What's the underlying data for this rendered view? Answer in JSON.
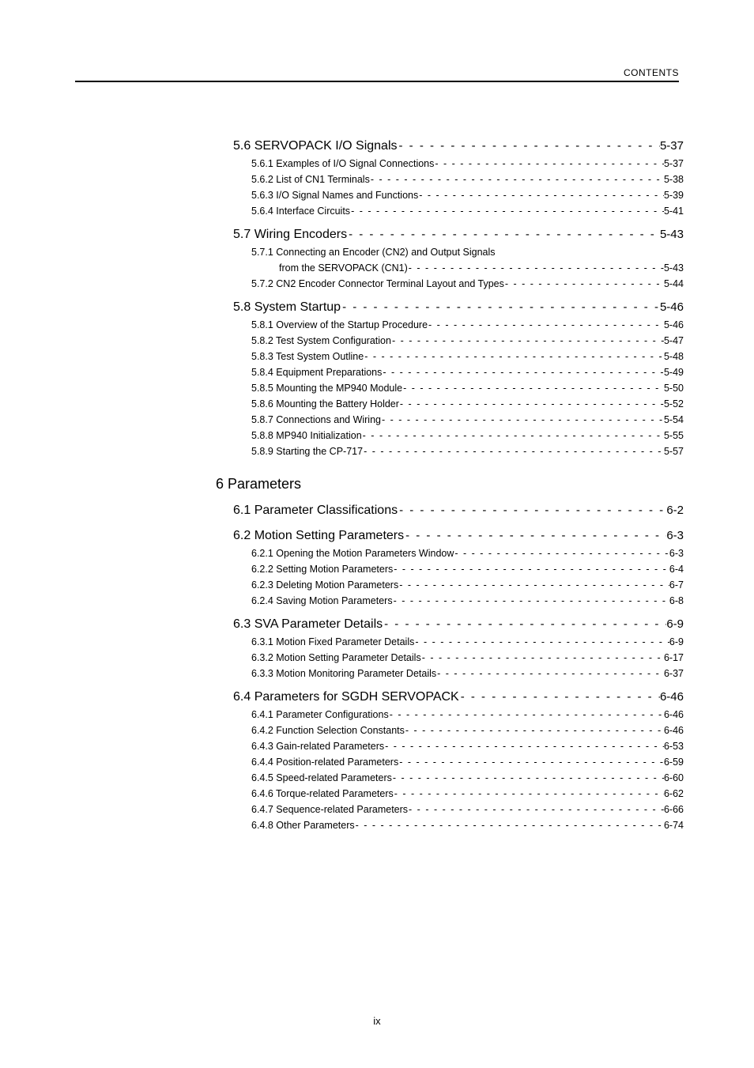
{
  "header_label": "CONTENTS",
  "page_number": "ix",
  "text_color": "#000000",
  "background_color": "#ffffff",
  "rule_color": "#000000",
  "fonts": {
    "header_size_pt": 9,
    "section_size_pt": 12,
    "sub_size_pt": 9.5,
    "chapter_size_pt": 14,
    "footer_size_pt": 10
  },
  "blocks": [
    {
      "type": "section",
      "label": "5.6 SERVOPACK I/O Signals",
      "page": "5-37",
      "subs": [
        {
          "label": "5.6.1 Examples of I/O Signal Connections",
          "page": "5-37"
        },
        {
          "label": "5.6.2 List of CN1 Terminals",
          "page": "5-38"
        },
        {
          "label": "5.6.3 I/O Signal Names and Functions",
          "page": "5-39"
        },
        {
          "label": "5.6.4 Interface Circuits",
          "page": "5-41"
        }
      ]
    },
    {
      "type": "section",
      "label": "5.7 Wiring Encoders",
      "page": "5-43",
      "subs": [
        {
          "label": "5.7.1 Connecting an Encoder (CN2) and Output Signals",
          "nodash": true
        },
        {
          "label": "from the SERVOPACK (CN1)",
          "page": "5-43",
          "cont": true
        },
        {
          "label": "5.7.2 CN2 Encoder Connector Terminal Layout and Types ",
          "page": "5-44"
        }
      ]
    },
    {
      "type": "section",
      "label": "5.8 System Startup",
      "page": "5-46",
      "subs": [
        {
          "label": "5.8.1 Overview of the Startup Procedure",
          "page": "5-46"
        },
        {
          "label": "5.8.2 Test System Configuration",
          "page": "5-47"
        },
        {
          "label": "5.8.3 Test System Outline",
          "page": "5-48"
        },
        {
          "label": "5.8.4 Equipment Preparations",
          "page": "5-49"
        },
        {
          "label": "5.8.5  Mounting the MP940 Module",
          "page": "5-50"
        },
        {
          "label": "5.8.6 Mounting the Battery Holder",
          "page": "5-52"
        },
        {
          "label": "5.8.7 Connections and Wiring",
          "page": "5-54"
        },
        {
          "label": "5.8.8 MP940 Initialization",
          "page": "5-55"
        },
        {
          "label": "5.8.9 Starting the CP-717",
          "page": "5-57"
        }
      ]
    },
    {
      "type": "chapter",
      "label": "6 Parameters"
    },
    {
      "type": "section",
      "label": "6.1 Parameter Classifications",
      "page": "6-2",
      "subs": []
    },
    {
      "type": "section",
      "label": "6.2 Motion Setting Parameters",
      "page": "6-3",
      "subs": [
        {
          "label": "6.2.1 Opening the Motion Parameters Window",
          "page": "6-3"
        },
        {
          "label": "6.2.2 Setting Motion Parameters",
          "page": "6-4"
        },
        {
          "label": "6.2.3 Deleting Motion Parameters",
          "page": "6-7"
        },
        {
          "label": "6.2.4 Saving Motion Parameters",
          "page": "6-8"
        }
      ]
    },
    {
      "type": "section",
      "label": "6.3 SVA Parameter Details ",
      "page": "6-9",
      "subs": [
        {
          "label": "6.3.1 Motion Fixed Parameter Details ",
          "page": "6-9"
        },
        {
          "label": "6.3.2 Motion Setting Parameter Details",
          "page": "6-17"
        },
        {
          "label": "6.3.3 Motion Monitoring Parameter Details",
          "page": "6-37"
        }
      ]
    },
    {
      "type": "section",
      "label": "6.4 Parameters for SGDH SERVOPACK",
      "page": "6-46",
      "subs": [
        {
          "label": "6.4.1 Parameter Configurations",
          "page": "6-46"
        },
        {
          "label": "6.4.2 Function Selection Constants",
          "page": "6-46"
        },
        {
          "label": "6.4.3 Gain-related Parameters ",
          "page": "6-53"
        },
        {
          "label": "6.4.4 Position-related Parameters",
          "page": "6-59"
        },
        {
          "label": "6.4.5 Speed-related Parameters",
          "page": "6-60"
        },
        {
          "label": "6.4.6 Torque-related Parameters",
          "page": "6-62"
        },
        {
          "label": "6.4.7 Sequence-related Parameters ",
          "page": "6-66"
        },
        {
          "label": "6.4.8 Other Parameters",
          "page": "6-74"
        }
      ]
    }
  ]
}
